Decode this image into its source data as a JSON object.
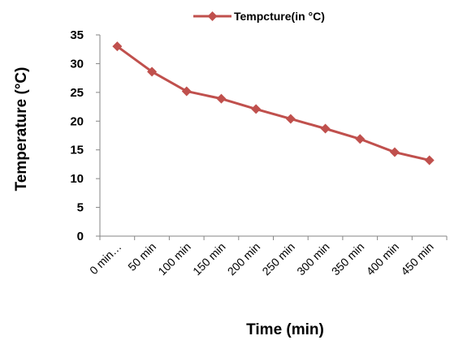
{
  "chart_data": {
    "type": "line",
    "title": "",
    "xlabel": "Time (min)",
    "ylabel": "Temperature (°C)",
    "categories": [
      "0 min…",
      "50 min",
      "100 min",
      "150 min",
      "200 min",
      "250 min",
      "300 min",
      "350 min",
      "400 min",
      "450 min"
    ],
    "series": [
      {
        "name": "Tempcture(in °C)",
        "values": [
          33,
          28.6,
          25.2,
          23.9,
          22.1,
          20.4,
          18.7,
          16.9,
          14.6,
          13.2
        ],
        "color": "#c0504d"
      }
    ],
    "ylim": [
      0,
      35
    ],
    "yticks": [
      0,
      5,
      10,
      15,
      20,
      25,
      30,
      35
    ],
    "grid": false,
    "legend_position": "top"
  }
}
